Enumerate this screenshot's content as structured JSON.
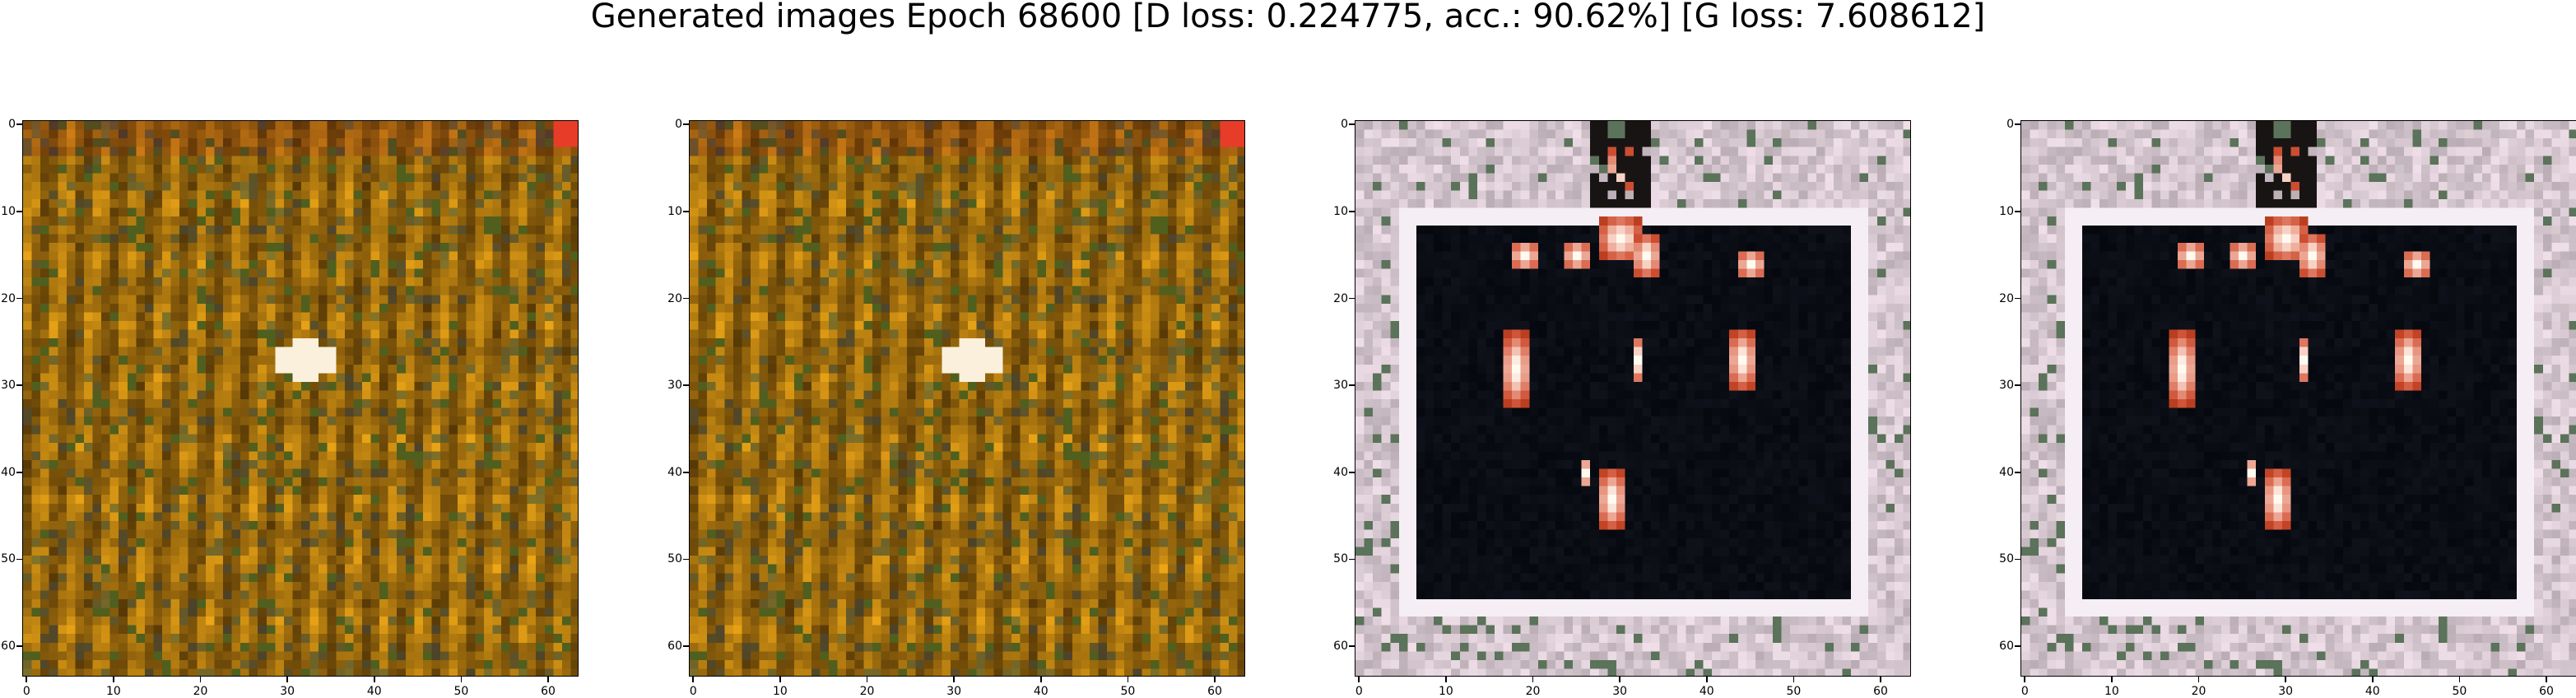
{
  "title": "Generated images Epoch 68600 [D loss: 0.224775, acc.: 90.62%] [G loss: 7.608612]",
  "axis_ticks": {
    "x": [
      "0",
      "10",
      "20",
      "30",
      "40",
      "50",
      "60"
    ],
    "y": [
      "0",
      "10",
      "20",
      "30",
      "40",
      "50",
      "60"
    ]
  },
  "panels": [
    {
      "id": "image-1",
      "style": "golden-texture",
      "palette": [
        "#b8860b",
        "#e0b030",
        "#5a4a10",
        "#6b7a2a",
        "#ffffff"
      ]
    },
    {
      "id": "image-2",
      "style": "golden-texture",
      "palette": [
        "#b8860b",
        "#e0b030",
        "#5a4a10",
        "#6b7a2a",
        "#ffffff"
      ]
    },
    {
      "id": "image-3",
      "style": "framed-dark",
      "palette": [
        "#e8d8e0",
        "#b8a8b0",
        "#050810",
        "#ff5a20",
        "#ffffff"
      ]
    },
    {
      "id": "image-4",
      "style": "framed-dark",
      "palette": [
        "#e8d8e0",
        "#b8a8b0",
        "#050810",
        "#ff5a20",
        "#ffffff"
      ]
    }
  ]
}
